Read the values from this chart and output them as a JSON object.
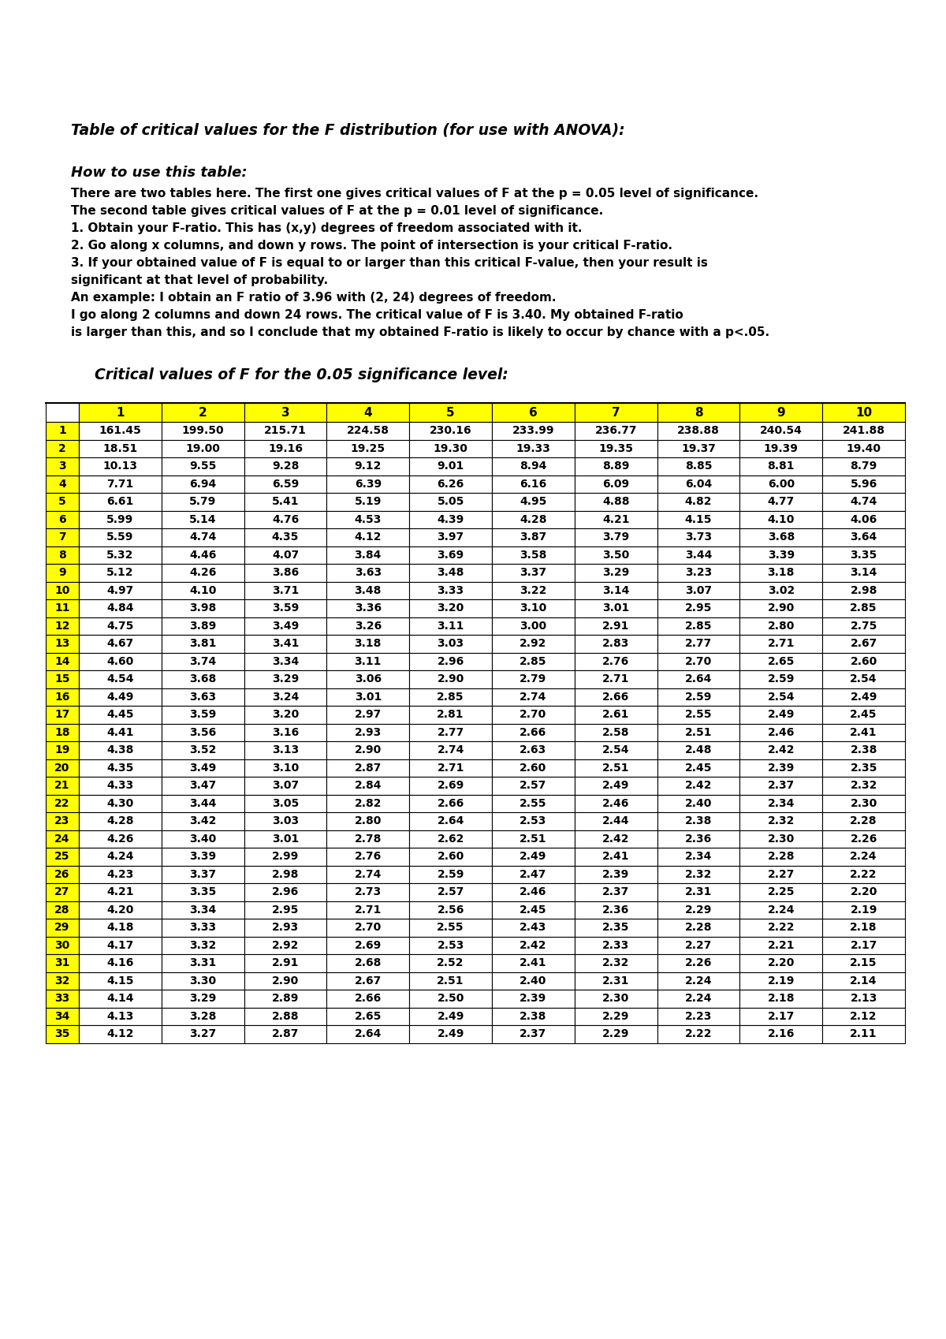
{
  "title": "Table of critical values for the F distribution (for use with ANOVA):",
  "subtitle": "How to use this table:",
  "instructions": [
    "There are two tables here. The first one gives critical values of F at the p = 0.05 level of significance.",
    "The second table gives critical values of F at the p = 0.01 level of significance.",
    "1. Obtain your F-ratio. This has (x,y) degrees of freedom associated with it.",
    "2. Go along x columns, and down y rows. The point of intersection is your critical F-ratio.",
    "3. If your obtained value of F is equal to or larger than this critical F-value, then your result is",
    "significant at that level of probability.",
    "An example: I obtain an F ratio of 3.96 with (2, 24) degrees of freedom.",
    "I go along 2 columns and down 24 rows. The critical value of F is 3.40. My obtained F-ratio",
    "is larger than this, and so I conclude that my obtained F-ratio is likely to occur by chance with a p<.05."
  ],
  "table_title": "Critical values of F for the 0.05 significance level:",
  "col_headers": [
    "1",
    "2",
    "3",
    "4",
    "5",
    "6",
    "7",
    "8",
    "9",
    "10"
  ],
  "row_headers": [
    "1",
    "2",
    "3",
    "4",
    "5",
    "6",
    "7",
    "8",
    "9",
    "10",
    "11",
    "12",
    "13",
    "14",
    "15",
    "16",
    "17",
    "18",
    "19",
    "20",
    "21",
    "22",
    "23",
    "24",
    "25",
    "26",
    "27",
    "28",
    "29",
    "30",
    "31",
    "32",
    "33",
    "34",
    "35"
  ],
  "table_data": [
    [
      161.45,
      199.5,
      215.71,
      224.58,
      230.16,
      233.99,
      236.77,
      238.88,
      240.54,
      241.88
    ],
    [
      18.51,
      19.0,
      19.16,
      19.25,
      19.3,
      19.33,
      19.35,
      19.37,
      19.39,
      19.4
    ],
    [
      10.13,
      9.55,
      9.28,
      9.12,
      9.01,
      8.94,
      8.89,
      8.85,
      8.81,
      8.79
    ],
    [
      7.71,
      6.94,
      6.59,
      6.39,
      6.26,
      6.16,
      6.09,
      6.04,
      6.0,
      5.96
    ],
    [
      6.61,
      5.79,
      5.41,
      5.19,
      5.05,
      4.95,
      4.88,
      4.82,
      4.77,
      4.74
    ],
    [
      5.99,
      5.14,
      4.76,
      4.53,
      4.39,
      4.28,
      4.21,
      4.15,
      4.1,
      4.06
    ],
    [
      5.59,
      4.74,
      4.35,
      4.12,
      3.97,
      3.87,
      3.79,
      3.73,
      3.68,
      3.64
    ],
    [
      5.32,
      4.46,
      4.07,
      3.84,
      3.69,
      3.58,
      3.5,
      3.44,
      3.39,
      3.35
    ],
    [
      5.12,
      4.26,
      3.86,
      3.63,
      3.48,
      3.37,
      3.29,
      3.23,
      3.18,
      3.14
    ],
    [
      4.97,
      4.1,
      3.71,
      3.48,
      3.33,
      3.22,
      3.14,
      3.07,
      3.02,
      2.98
    ],
    [
      4.84,
      3.98,
      3.59,
      3.36,
      3.2,
      3.1,
      3.01,
      2.95,
      2.9,
      2.85
    ],
    [
      4.75,
      3.89,
      3.49,
      3.26,
      3.11,
      3.0,
      2.91,
      2.85,
      2.8,
      2.75
    ],
    [
      4.67,
      3.81,
      3.41,
      3.18,
      3.03,
      2.92,
      2.83,
      2.77,
      2.71,
      2.67
    ],
    [
      4.6,
      3.74,
      3.34,
      3.11,
      2.96,
      2.85,
      2.76,
      2.7,
      2.65,
      2.6
    ],
    [
      4.54,
      3.68,
      3.29,
      3.06,
      2.9,
      2.79,
      2.71,
      2.64,
      2.59,
      2.54
    ],
    [
      4.49,
      3.63,
      3.24,
      3.01,
      2.85,
      2.74,
      2.66,
      2.59,
      2.54,
      2.49
    ],
    [
      4.45,
      3.59,
      3.2,
      2.97,
      2.81,
      2.7,
      2.61,
      2.55,
      2.49,
      2.45
    ],
    [
      4.41,
      3.56,
      3.16,
      2.93,
      2.77,
      2.66,
      2.58,
      2.51,
      2.46,
      2.41
    ],
    [
      4.38,
      3.52,
      3.13,
      2.9,
      2.74,
      2.63,
      2.54,
      2.48,
      2.42,
      2.38
    ],
    [
      4.35,
      3.49,
      3.1,
      2.87,
      2.71,
      2.6,
      2.51,
      2.45,
      2.39,
      2.35
    ],
    [
      4.33,
      3.47,
      3.07,
      2.84,
      2.69,
      2.57,
      2.49,
      2.42,
      2.37,
      2.32
    ],
    [
      4.3,
      3.44,
      3.05,
      2.82,
      2.66,
      2.55,
      2.46,
      2.4,
      2.34,
      2.3
    ],
    [
      4.28,
      3.42,
      3.03,
      2.8,
      2.64,
      2.53,
      2.44,
      2.38,
      2.32,
      2.28
    ],
    [
      4.26,
      3.4,
      3.01,
      2.78,
      2.62,
      2.51,
      2.42,
      2.36,
      2.3,
      2.26
    ],
    [
      4.24,
      3.39,
      2.99,
      2.76,
      2.6,
      2.49,
      2.41,
      2.34,
      2.28,
      2.24
    ],
    [
      4.23,
      3.37,
      2.98,
      2.74,
      2.59,
      2.47,
      2.39,
      2.32,
      2.27,
      2.22
    ],
    [
      4.21,
      3.35,
      2.96,
      2.73,
      2.57,
      2.46,
      2.37,
      2.31,
      2.25,
      2.2
    ],
    [
      4.2,
      3.34,
      2.95,
      2.71,
      2.56,
      2.45,
      2.36,
      2.29,
      2.24,
      2.19
    ],
    [
      4.18,
      3.33,
      2.93,
      2.7,
      2.55,
      2.43,
      2.35,
      2.28,
      2.22,
      2.18
    ],
    [
      4.17,
      3.32,
      2.92,
      2.69,
      2.53,
      2.42,
      2.33,
      2.27,
      2.21,
      2.17
    ],
    [
      4.16,
      3.31,
      2.91,
      2.68,
      2.52,
      2.41,
      2.32,
      2.26,
      2.2,
      2.15
    ],
    [
      4.15,
      3.3,
      2.9,
      2.67,
      2.51,
      2.4,
      2.31,
      2.24,
      2.19,
      2.14
    ],
    [
      4.14,
      3.29,
      2.89,
      2.66,
      2.5,
      2.39,
      2.3,
      2.24,
      2.18,
      2.13
    ],
    [
      4.13,
      3.28,
      2.88,
      2.65,
      2.49,
      2.38,
      2.29,
      2.23,
      2.17,
      2.12
    ],
    [
      4.12,
      3.27,
      2.87,
      2.64,
      2.49,
      2.37,
      2.29,
      2.22,
      2.16,
      2.11
    ]
  ],
  "yellow": "#FFFF00",
  "white": "#FFFFFF",
  "black": "#000000",
  "header_bg": "#FFFF00",
  "row_label_bg": "#FFFF00",
  "data_bg": "#FFFFFF",
  "border_color": "#000000",
  "fig_width": 12.0,
  "fig_height": 16.98,
  "dpi": 100
}
